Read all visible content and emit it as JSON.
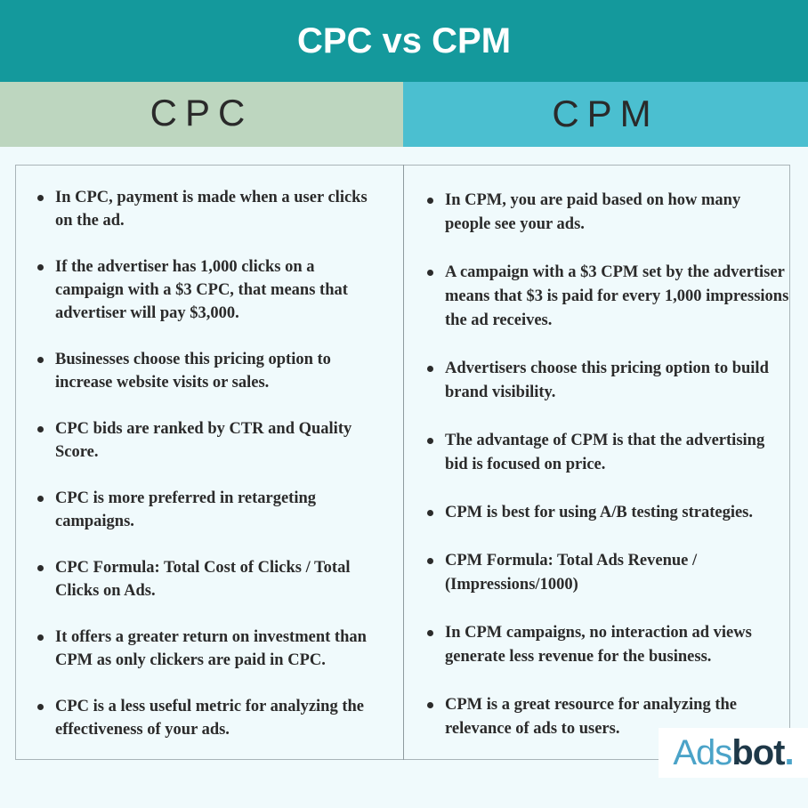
{
  "title": "CPC vs CPM",
  "columns": [
    {
      "header": "CPC",
      "items": [
        "In CPC, payment is made when a user clicks on the ad.",
        "If the advertiser has 1,000 clicks on a campaign with a $3 CPC, that means that advertiser will pay $3,000.",
        "Businesses choose this pricing option to increase website visits or sales.",
        "CPC bids are ranked by CTR and Quality Score.",
        "CPC is more preferred in retargeting campaigns.",
        "CPC Formula: Total Cost of Clicks / Total Clicks on Ads.",
        "It offers a greater return on investment than CPM as only clickers are paid in CPC.",
        "CPC is a less useful metric for analyzing the effectiveness of your ads."
      ]
    },
    {
      "header": "CPM",
      "items": [
        "In CPM, you are paid based on how many people see your ads.",
        "A campaign with a $3 CPM set by the advertiser means that $3 is paid for every 1,000 impressions the ad receives.",
        "Advertisers choose this pricing option to build brand visibility.",
        "The advantage of CPM is that the advertising bid is focused on price.",
        "CPM is best for using A/B testing strategies.",
        "CPM Formula: Total Ads Revenue / (Impressions/1000)",
        "In CPM campaigns, no interaction ad views generate less revenue for the business.",
        "CPM is a great resource for analyzing the relevance of ads to users."
      ]
    }
  ],
  "logo": {
    "parts": [
      "Ads",
      "bot",
      "."
    ]
  }
}
